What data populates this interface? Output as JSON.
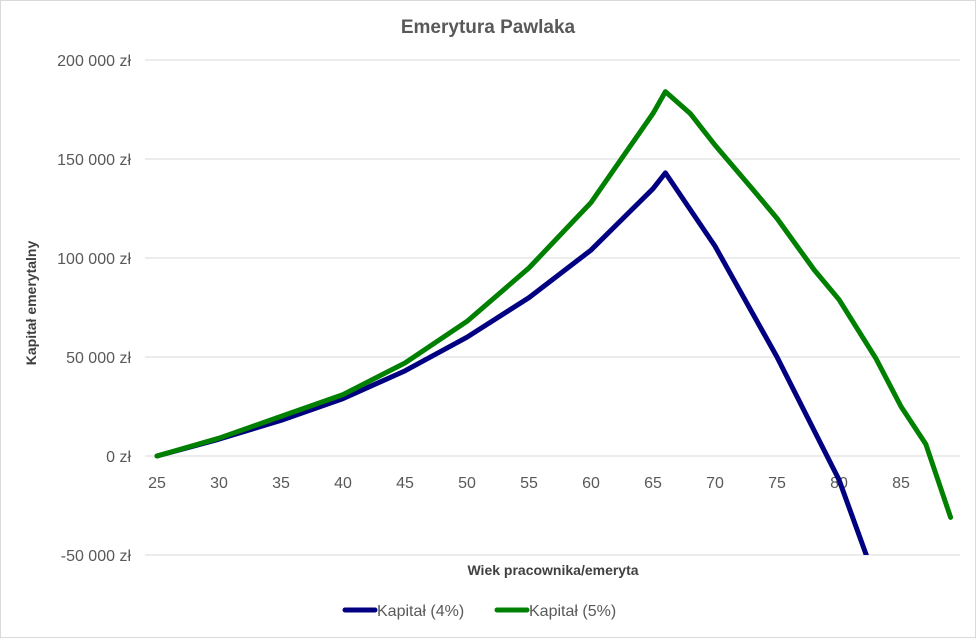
{
  "chart_data": {
    "type": "line",
    "title": "Emerytura Pawlaka",
    "xlabel": "Wiek pracownika/emeryta",
    "ylabel": "Kapitał emerytalny",
    "x_ticks": [
      "25",
      "30",
      "35",
      "40",
      "45",
      "50",
      "55",
      "60",
      "65",
      "70",
      "75",
      "80",
      "85"
    ],
    "x_range": [
      25,
      89
    ],
    "ylim": [
      -50000,
      200000
    ],
    "y_ticks": [
      {
        "value": 200000,
        "label": "200 000 zł"
      },
      {
        "value": 150000,
        "label": "150 000 zł"
      },
      {
        "value": 100000,
        "label": "100 000 zł"
      },
      {
        "value": 50000,
        "label": "50 000 zł"
      },
      {
        "value": 0,
        "label": "0 zł"
      },
      {
        "value": -50000,
        "label": "-50 000 zł",
        "color": "#ff0000"
      }
    ],
    "grid": true,
    "legend": "bottom",
    "series": [
      {
        "name": "Kapitał (4%)",
        "color": "#000080",
        "x": [
          25,
          30,
          35,
          40,
          45,
          50,
          55,
          60,
          65,
          66,
          70,
          75,
          80,
          82.2
        ],
        "y": [
          0,
          8500,
          18000,
          29000,
          43000,
          60000,
          80000,
          104000,
          135000,
          143000,
          106000,
          50000,
          -12000,
          -50000
        ]
      },
      {
        "name": "Kapitał (5%)",
        "color": "#008000",
        "x": [
          25,
          30,
          35,
          40,
          45,
          50,
          55,
          60,
          63,
          65,
          66,
          68,
          70,
          73,
          75,
          78,
          80,
          83,
          85,
          87,
          89
        ],
        "y": [
          0,
          9000,
          20000,
          31000,
          47000,
          68000,
          95000,
          128000,
          155000,
          173000,
          184000,
          173000,
          157000,
          135000,
          120000,
          94000,
          79000,
          49000,
          25000,
          6000,
          -31000
        ]
      }
    ]
  }
}
